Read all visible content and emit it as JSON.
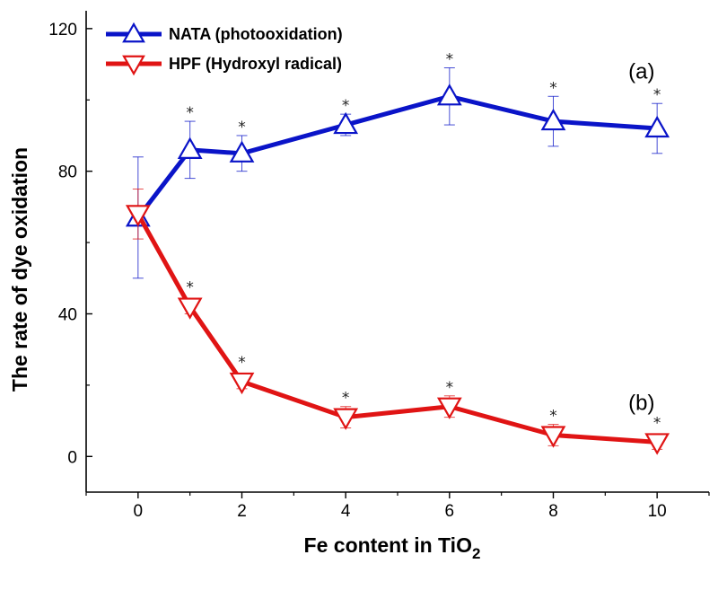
{
  "chart_data": {
    "type": "line",
    "title": "",
    "xlabel": "Fe content in TiO",
    "xlabel_subscript": "2",
    "ylabel": "The rate of dye oxidation",
    "xlim": [
      -1,
      11
    ],
    "ylim": [
      -10,
      125
    ],
    "xticks": [
      0,
      2,
      4,
      6,
      8,
      10
    ],
    "yticks": [
      0,
      40,
      80,
      120
    ],
    "grid": false,
    "legend_position": "top-left",
    "series": [
      {
        "name": "NATA (photooxidation)",
        "color": "#0a14c8",
        "marker": "triangle-up",
        "x": [
          0,
          1,
          2,
          4,
          6,
          8,
          10
        ],
        "y": [
          67,
          86,
          85,
          93,
          101,
          94,
          92
        ],
        "error": [
          17,
          8,
          5,
          3,
          8,
          7,
          7
        ],
        "significant": [
          false,
          true,
          true,
          true,
          true,
          true,
          true
        ]
      },
      {
        "name": "HPF (Hydroxyl radical)",
        "color": "#e01414",
        "marker": "triangle-down",
        "x": [
          0,
          1,
          2,
          4,
          6,
          8,
          10
        ],
        "y": [
          68,
          42,
          21,
          11,
          14,
          6,
          4
        ],
        "error": [
          7,
          2,
          2,
          3,
          3,
          3,
          2
        ],
        "significant": [
          false,
          true,
          true,
          true,
          true,
          true,
          true
        ]
      }
    ],
    "annotations": [
      {
        "text": "(a)",
        "x": 9.7,
        "y": 106
      },
      {
        "text": "(b)",
        "x": 9.7,
        "y": 13
      }
    ],
    "significance_marker": "*"
  }
}
